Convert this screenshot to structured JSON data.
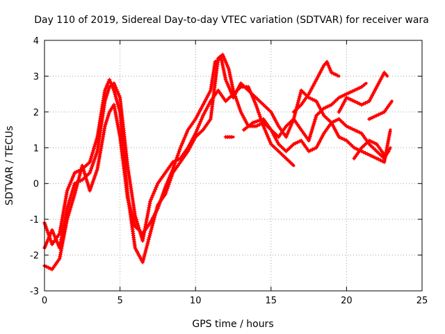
{
  "chart_data": {
    "type": "scatter",
    "title": "Day 110 of 2019, Sidereal Day-to-day VTEC variation (SDTVAR) for receiver wara",
    "xlabel": "GPS time / hours",
    "ylabel": "SDTVAR / TECUs",
    "xlim": [
      0,
      25
    ],
    "ylim": [
      -3,
      4
    ],
    "xticks": [
      "0",
      "5",
      "10",
      "15",
      "20",
      "25"
    ],
    "yticks": [
      "-3",
      "-2",
      "-1",
      "0",
      "1",
      "2",
      "3",
      "4"
    ],
    "grid": true,
    "marker": "plus",
    "color": "#ff0000",
    "series": [
      {
        "points": [
          [
            0,
            -1.1
          ],
          [
            0.5,
            -1.7
          ],
          [
            1,
            -1.4
          ],
          [
            1.5,
            -0.2
          ],
          [
            2,
            0.3
          ],
          [
            2.5,
            0.4
          ],
          [
            3,
            0.6
          ],
          [
            3.5,
            1.3
          ],
          [
            4,
            2.6
          ],
          [
            4.3,
            2.9
          ],
          [
            4.6,
            2.6
          ],
          [
            5,
            2.0
          ],
          [
            5.5,
            -0.3
          ],
          [
            6,
            -1.8
          ],
          [
            6.5,
            -2.2
          ],
          [
            7,
            -1.4
          ],
          [
            7.5,
            -0.6
          ],
          [
            8,
            -0.3
          ],
          [
            8.5,
            0.3
          ],
          [
            9,
            0.6
          ],
          [
            9.5,
            0.9
          ],
          [
            10,
            1.3
          ],
          [
            10.5,
            1.5
          ],
          [
            11,
            1.8
          ],
          [
            11.5,
            3.5
          ],
          [
            11.8,
            3.6
          ],
          [
            12.2,
            3.2
          ],
          [
            12.5,
            2.6
          ],
          [
            13,
            2.0
          ],
          [
            13.5,
            1.6
          ],
          [
            14,
            1.6
          ],
          [
            14.5,
            1.7
          ],
          [
            15,
            1.5
          ],
          [
            15.5,
            1.1
          ],
          [
            16,
            0.9
          ],
          [
            16.5,
            1.1
          ],
          [
            17,
            1.2
          ],
          [
            17.5,
            0.9
          ],
          [
            18,
            1.0
          ],
          [
            18.5,
            1.4
          ],
          [
            19,
            1.7
          ],
          [
            19.5,
            1.8
          ],
          [
            20,
            1.6
          ],
          [
            20.5,
            1.5
          ],
          [
            21,
            1.4
          ],
          [
            21.5,
            1.1
          ],
          [
            22,
            0.9
          ],
          [
            22.5,
            0.7
          ],
          [
            22.9,
            1.0
          ]
        ]
      },
      {
        "points": [
          [
            0,
            -1.8
          ],
          [
            0.5,
            -1.3
          ],
          [
            1,
            -1.8
          ],
          [
            1.5,
            -0.7
          ],
          [
            2,
            0.0
          ],
          [
            2.5,
            0.1
          ],
          [
            3,
            0.3
          ],
          [
            3.5,
            0.9
          ],
          [
            4,
            2.3
          ],
          [
            4.3,
            2.7
          ],
          [
            4.6,
            2.8
          ],
          [
            5,
            2.4
          ],
          [
            5.5,
            0.5
          ],
          [
            6,
            -0.9
          ],
          [
            6.5,
            -1.6
          ],
          [
            7,
            -0.5
          ],
          [
            7.5,
            0.0
          ],
          [
            8,
            0.3
          ],
          [
            8.5,
            0.6
          ],
          [
            9,
            0.7
          ],
          [
            9.5,
            1.0
          ],
          [
            10,
            1.4
          ],
          [
            10.5,
            1.9
          ],
          [
            11,
            2.3
          ],
          [
            11.5,
            2.6
          ],
          [
            12,
            2.3
          ],
          [
            12.5,
            2.5
          ],
          [
            13,
            2.7
          ],
          [
            13.5,
            2.7
          ],
          [
            14,
            2.2
          ],
          [
            14.5,
            1.6
          ],
          [
            15,
            1.1
          ],
          [
            15.5,
            0.9
          ],
          [
            16,
            0.7
          ],
          [
            16.5,
            0.5
          ]
        ]
      },
      {
        "points": [
          [
            0,
            -2.3
          ],
          [
            0.5,
            -2.4
          ],
          [
            1,
            -2.1
          ],
          [
            1.5,
            -1.0
          ],
          [
            2,
            -0.3
          ],
          [
            2.5,
            0.5
          ],
          [
            3,
            -0.2
          ],
          [
            3.5,
            0.4
          ],
          [
            4,
            1.6
          ],
          [
            4.3,
            2.0
          ],
          [
            4.6,
            2.2
          ],
          [
            5,
            1.3
          ],
          [
            5.5,
            -0.4
          ],
          [
            6,
            -1.2
          ],
          [
            6.5,
            -1.4
          ],
          [
            7,
            -1.1
          ],
          [
            7.5,
            -0.7
          ],
          [
            8,
            -0.1
          ],
          [
            8.5,
            0.4
          ],
          [
            9,
            1.0
          ],
          [
            9.5,
            1.5
          ],
          [
            10,
            1.8
          ],
          [
            10.5,
            2.2
          ],
          [
            11,
            2.6
          ],
          [
            11.3,
            3.4
          ],
          [
            11.7,
            3.5
          ],
          [
            12,
            2.9
          ],
          [
            12.5,
            2.4
          ],
          [
            13,
            2.8
          ],
          [
            13.5,
            2.6
          ],
          [
            14,
            2.4
          ],
          [
            14.5,
            2.2
          ],
          [
            15,
            2.0
          ],
          [
            15.5,
            1.6
          ],
          [
            16,
            1.3
          ],
          [
            16.5,
            1.8
          ],
          [
            17,
            2.6
          ],
          [
            17.5,
            2.4
          ],
          [
            18,
            2.3
          ],
          [
            18.5,
            1.9
          ],
          [
            19,
            1.7
          ],
          [
            19.5,
            1.3
          ],
          [
            20,
            1.2
          ],
          [
            20.5,
            1.0
          ],
          [
            21,
            0.9
          ],
          [
            21.5,
            0.8
          ],
          [
            22,
            0.7
          ],
          [
            22.5,
            0.6
          ],
          [
            22.9,
            1.5
          ]
        ]
      },
      {
        "points": [
          [
            12,
            1.3
          ],
          [
            12.5,
            1.3
          ]
        ]
      },
      {
        "points": [
          [
            13.2,
            1.5
          ],
          [
            13.8,
            1.7
          ],
          [
            14.5,
            1.8
          ],
          [
            15,
            1.5
          ],
          [
            15.5,
            1.3
          ],
          [
            16,
            1.6
          ],
          [
            16.5,
            1.8
          ],
          [
            17,
            1.5
          ],
          [
            17.5,
            1.2
          ]
        ]
      },
      {
        "points": [
          [
            17.5,
            1.2
          ],
          [
            18,
            1.9
          ],
          [
            18.5,
            2.1
          ],
          [
            19,
            2.2
          ],
          [
            19.5,
            2.4
          ],
          [
            20,
            2.5
          ],
          [
            20.5,
            2.6
          ],
          [
            21,
            2.7
          ],
          [
            21.3,
            2.8
          ]
        ]
      },
      {
        "points": [
          [
            16.5,
            2.0
          ],
          [
            17,
            2.2
          ],
          [
            17.5,
            2.5
          ],
          [
            18,
            2.9
          ],
          [
            18.5,
            3.3
          ],
          [
            18.7,
            3.4
          ],
          [
            19,
            3.1
          ],
          [
            19.5,
            3.0
          ]
        ]
      },
      {
        "points": [
          [
            19.5,
            2.0
          ],
          [
            20,
            2.4
          ],
          [
            20.5,
            2.3
          ],
          [
            21,
            2.2
          ],
          [
            21.5,
            2.3
          ],
          [
            22,
            2.7
          ],
          [
            22.5,
            3.1
          ],
          [
            22.7,
            3.0
          ]
        ]
      },
      {
        "points": [
          [
            20.5,
            0.7
          ],
          [
            21,
            1.0
          ],
          [
            21.5,
            1.2
          ],
          [
            22,
            1.1
          ],
          [
            22.5,
            0.8
          ],
          [
            22.8,
            0.9
          ]
        ]
      },
      {
        "points": [
          [
            21.5,
            1.8
          ],
          [
            22,
            1.9
          ],
          [
            22.5,
            2.0
          ],
          [
            23,
            2.3
          ]
        ]
      }
    ]
  }
}
